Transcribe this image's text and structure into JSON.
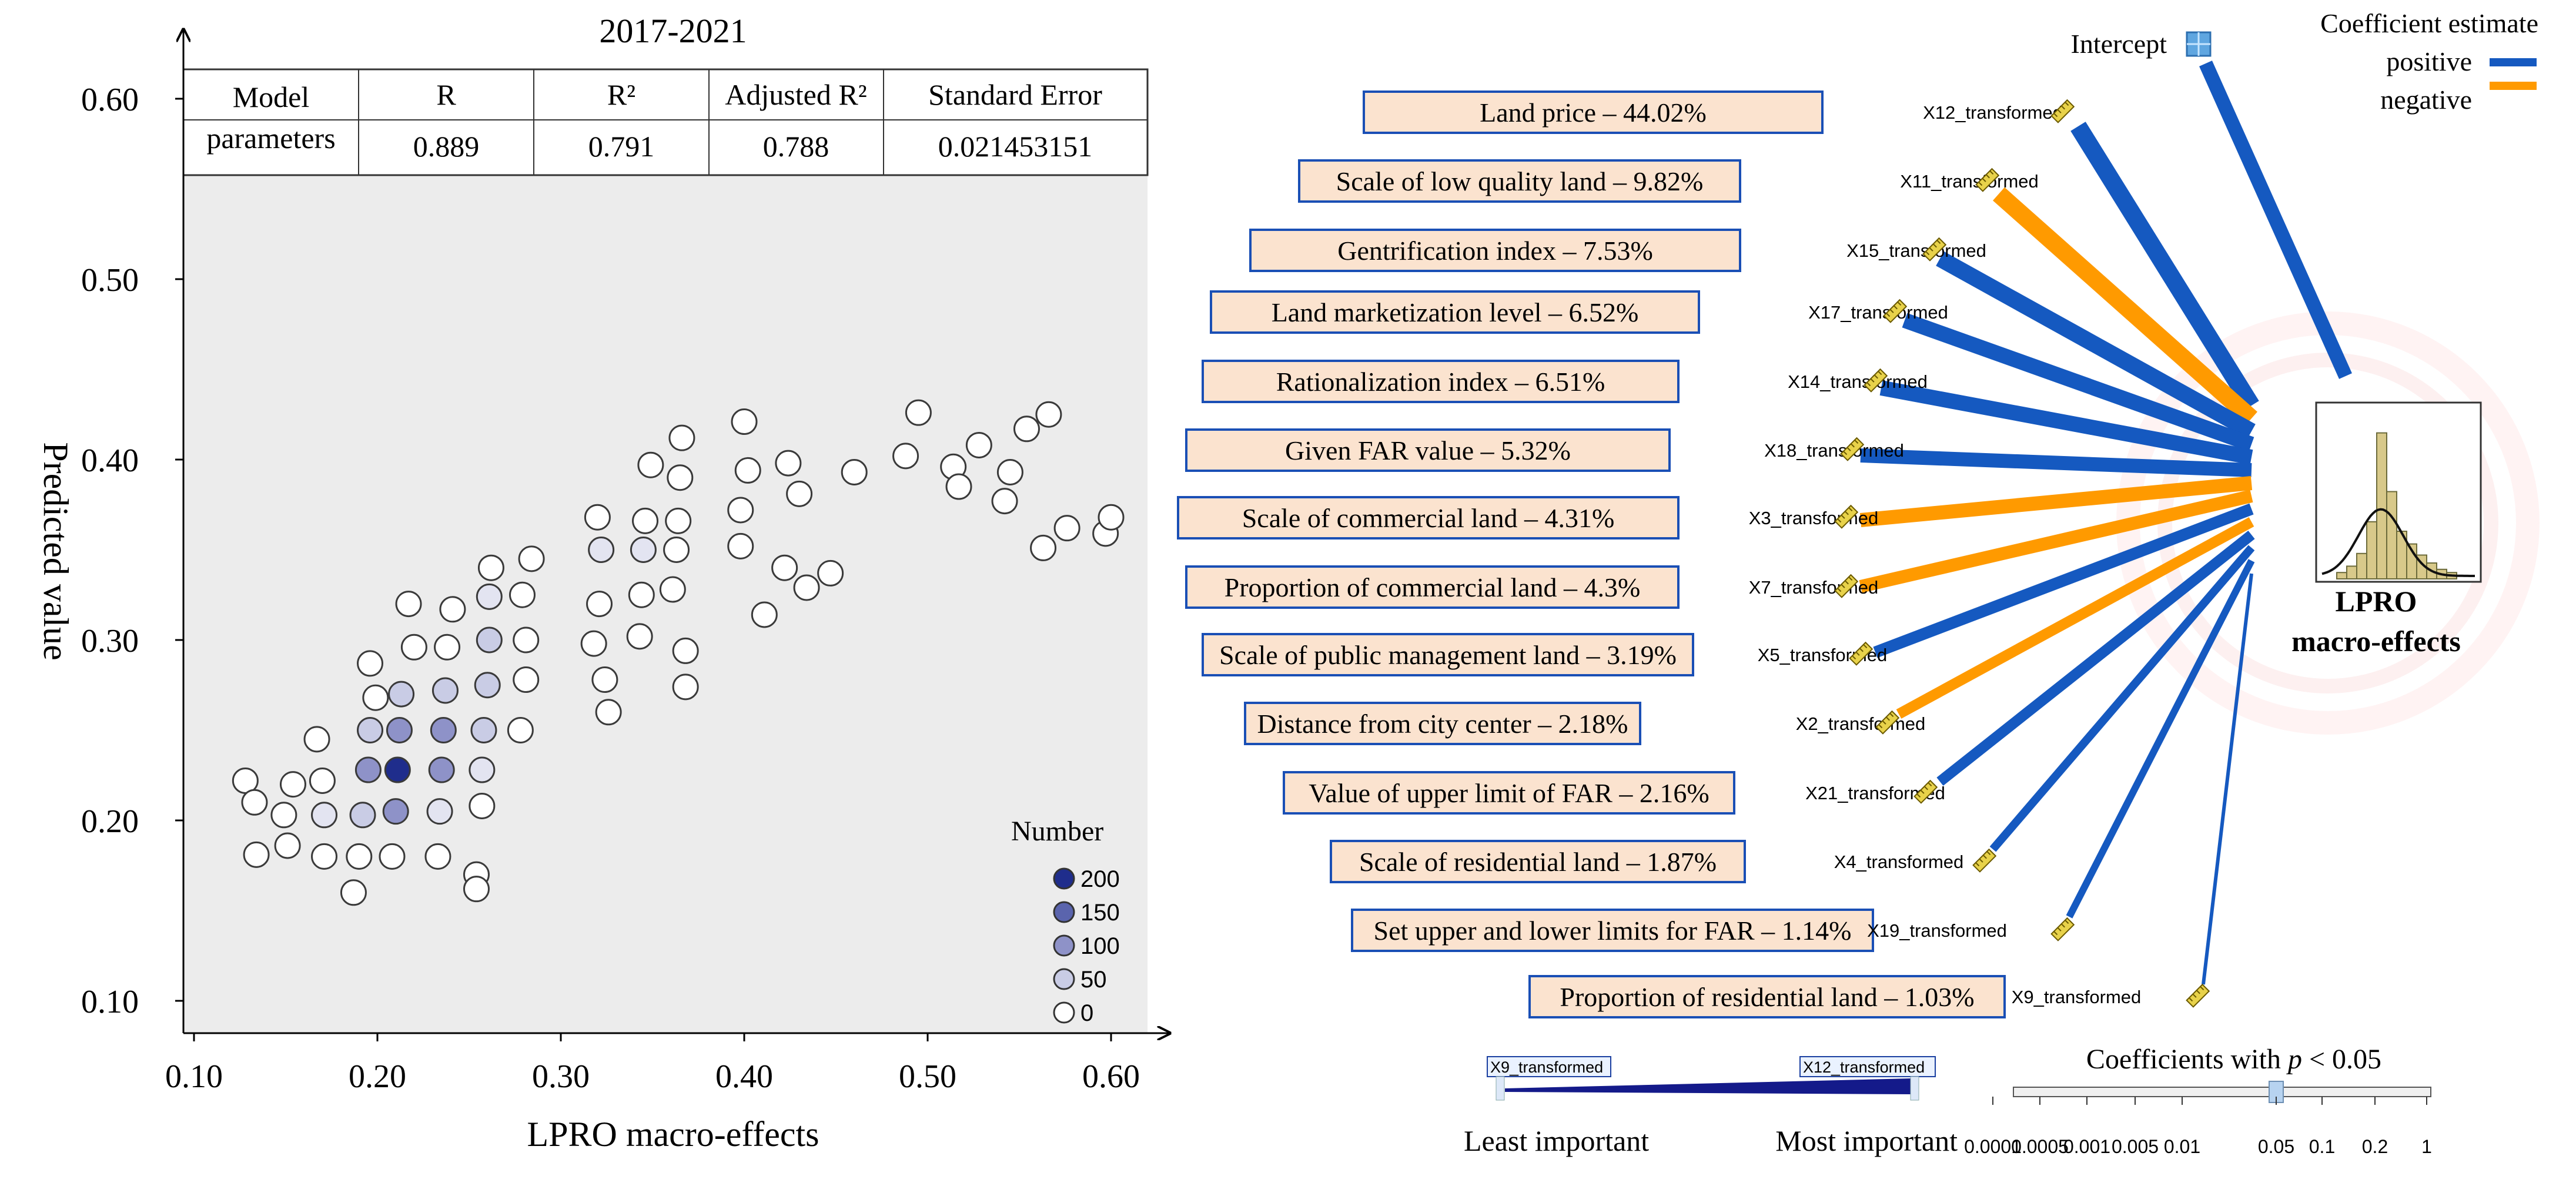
{
  "left_chart": {
    "title": "2017-2021",
    "xlabel": "LPRO macro-effects",
    "ylabel": "Predicted value",
    "legend_title": "Number",
    "table": {
      "headers": [
        "Model parameters",
        "R",
        "R²",
        "Adjusted R²",
        "Standard Error"
      ],
      "header_lines": [
        "Model",
        "parameters"
      ],
      "values": [
        "0.889",
        "0.791",
        "0.788",
        "0.021453151"
      ]
    }
  },
  "right_chart": {
    "intercept_label": "Intercept",
    "legend": {
      "title": "Coefficient estimate",
      "positive": "positive",
      "negative": "negative",
      "positive_color": "#1559c0",
      "negative_color": "#ff9a00"
    },
    "target_label_lines": [
      "LPRO",
      "macro-effects"
    ],
    "importance_bar": {
      "left_tag": "X9_transformed",
      "right_tag": "X12_transformed",
      "least": "Least important",
      "most": "Most important"
    },
    "pvalue_bar": {
      "title": "Coefficients with p < 0.05",
      "title_pre": "Coefficients with ",
      "title_p": "p",
      "title_post": " < 0.05",
      "ticks": [
        "0.0001",
        "0.0005",
        "0.001",
        "0.005",
        "0.01",
        "0.05",
        "0.1",
        "0.2",
        "1"
      ]
    }
  },
  "chart_data": [
    {
      "type": "scatter",
      "title": "2017-2021",
      "xlabel": "LPRO macro-effects",
      "ylabel": "Predicted value",
      "xlim": [
        0.08,
        0.62
      ],
      "ylim": [
        0.09,
        0.64
      ],
      "xticks": [
        "0.10",
        "0.20",
        "0.30",
        "0.40",
        "0.50",
        "0.60"
      ],
      "yticks": [
        "0.10",
        "0.20",
        "0.30",
        "0.40",
        "0.50",
        "0.60"
      ],
      "legend": {
        "title": "Number",
        "levels": [
          200,
          150,
          100,
          50,
          0
        ],
        "labels": [
          "200",
          "150",
          "100",
          "50",
          "0"
        ],
        "colors": [
          "#1f2d8c",
          "#5a64ad",
          "#8e92c8",
          "#c9cce5",
          "#ffffff"
        ]
      },
      "points": [
        {
          "x": 0.128,
          "y": 0.222,
          "n": 0
        },
        {
          "x": 0.133,
          "y": 0.21,
          "n": 0
        },
        {
          "x": 0.134,
          "y": 0.181,
          "n": 0
        },
        {
          "x": 0.149,
          "y": 0.203,
          "n": 0
        },
        {
          "x": 0.151,
          "y": 0.186,
          "n": 0
        },
        {
          "x": 0.154,
          "y": 0.22,
          "n": 0
        },
        {
          "x": 0.167,
          "y": 0.245,
          "n": 0
        },
        {
          "x": 0.17,
          "y": 0.222,
          "n": 0
        },
        {
          "x": 0.171,
          "y": 0.203,
          "n": 20
        },
        {
          "x": 0.171,
          "y": 0.18,
          "n": 0
        },
        {
          "x": 0.187,
          "y": 0.16,
          "n": 0
        },
        {
          "x": 0.19,
          "y": 0.18,
          "n": 0
        },
        {
          "x": 0.192,
          "y": 0.203,
          "n": 50
        },
        {
          "x": 0.195,
          "y": 0.228,
          "n": 100
        },
        {
          "x": 0.196,
          "y": 0.25,
          "n": 50
        },
        {
          "x": 0.196,
          "y": 0.287,
          "n": 0
        },
        {
          "x": 0.199,
          "y": 0.268,
          "n": 0
        },
        {
          "x": 0.208,
          "y": 0.18,
          "n": 0
        },
        {
          "x": 0.21,
          "y": 0.205,
          "n": 100
        },
        {
          "x": 0.211,
          "y": 0.228,
          "n": 200
        },
        {
          "x": 0.212,
          "y": 0.25,
          "n": 100
        },
        {
          "x": 0.213,
          "y": 0.27,
          "n": 50
        },
        {
          "x": 0.217,
          "y": 0.32,
          "n": 0
        },
        {
          "x": 0.22,
          "y": 0.296,
          "n": 0
        },
        {
          "x": 0.233,
          "y": 0.18,
          "n": 0
        },
        {
          "x": 0.234,
          "y": 0.205,
          "n": 20
        },
        {
          "x": 0.235,
          "y": 0.228,
          "n": 100
        },
        {
          "x": 0.236,
          "y": 0.25,
          "n": 100
        },
        {
          "x": 0.237,
          "y": 0.272,
          "n": 50
        },
        {
          "x": 0.238,
          "y": 0.296,
          "n": 0
        },
        {
          "x": 0.241,
          "y": 0.317,
          "n": 0
        },
        {
          "x": 0.254,
          "y": 0.17,
          "n": 0
        },
        {
          "x": 0.254,
          "y": 0.162,
          "n": 0
        },
        {
          "x": 0.257,
          "y": 0.208,
          "n": 0
        },
        {
          "x": 0.257,
          "y": 0.228,
          "n": 20
        },
        {
          "x": 0.258,
          "y": 0.25,
          "n": 80
        },
        {
          "x": 0.26,
          "y": 0.275,
          "n": 50
        },
        {
          "x": 0.261,
          "y": 0.3,
          "n": 50
        },
        {
          "x": 0.261,
          "y": 0.324,
          "n": 20
        },
        {
          "x": 0.262,
          "y": 0.34,
          "n": 0
        },
        {
          "x": 0.278,
          "y": 0.25,
          "n": 0
        },
        {
          "x": 0.281,
          "y": 0.278,
          "n": 0
        },
        {
          "x": 0.281,
          "y": 0.3,
          "n": 0
        },
        {
          "x": 0.279,
          "y": 0.325,
          "n": 0
        },
        {
          "x": 0.284,
          "y": 0.345,
          "n": 0
        },
        {
          "x": 0.318,
          "y": 0.298,
          "n": 0
        },
        {
          "x": 0.321,
          "y": 0.32,
          "n": 0
        },
        {
          "x": 0.322,
          "y": 0.35,
          "n": 20
        },
        {
          "x": 0.32,
          "y": 0.368,
          "n": 0
        },
        {
          "x": 0.324,
          "y": 0.278,
          "n": 0
        },
        {
          "x": 0.326,
          "y": 0.26,
          "n": 0
        },
        {
          "x": 0.343,
          "y": 0.302,
          "n": 0
        },
        {
          "x": 0.344,
          "y": 0.325,
          "n": 0
        },
        {
          "x": 0.345,
          "y": 0.35,
          "n": 20
        },
        {
          "x": 0.346,
          "y": 0.366,
          "n": 0
        },
        {
          "x": 0.349,
          "y": 0.397,
          "n": 0
        },
        {
          "x": 0.361,
          "y": 0.328,
          "n": 0
        },
        {
          "x": 0.363,
          "y": 0.35,
          "n": 0
        },
        {
          "x": 0.364,
          "y": 0.366,
          "n": 0
        },
        {
          "x": 0.365,
          "y": 0.39,
          "n": 0
        },
        {
          "x": 0.366,
          "y": 0.412,
          "n": 0
        },
        {
          "x": 0.368,
          "y": 0.274,
          "n": 0
        },
        {
          "x": 0.368,
          "y": 0.294,
          "n": 0
        },
        {
          "x": 0.398,
          "y": 0.352,
          "n": 0
        },
        {
          "x": 0.398,
          "y": 0.372,
          "n": 0
        },
        {
          "x": 0.4,
          "y": 0.421,
          "n": 0
        },
        {
          "x": 0.402,
          "y": 0.394,
          "n": 0
        },
        {
          "x": 0.411,
          "y": 0.314,
          "n": 0
        },
        {
          "x": 0.422,
          "y": 0.34,
          "n": 0
        },
        {
          "x": 0.424,
          "y": 0.398,
          "n": 0
        },
        {
          "x": 0.43,
          "y": 0.381,
          "n": 0
        },
        {
          "x": 0.434,
          "y": 0.329,
          "n": 0
        },
        {
          "x": 0.447,
          "y": 0.337,
          "n": 0
        },
        {
          "x": 0.46,
          "y": 0.393,
          "n": 0
        },
        {
          "x": 0.488,
          "y": 0.402,
          "n": 0
        },
        {
          "x": 0.495,
          "y": 0.426,
          "n": 0
        },
        {
          "x": 0.514,
          "y": 0.396,
          "n": 0
        },
        {
          "x": 0.517,
          "y": 0.385,
          "n": 0
        },
        {
          "x": 0.528,
          "y": 0.408,
          "n": 0
        },
        {
          "x": 0.542,
          "y": 0.377,
          "n": 0
        },
        {
          "x": 0.545,
          "y": 0.393,
          "n": 0
        },
        {
          "x": 0.554,
          "y": 0.417,
          "n": 0
        },
        {
          "x": 0.563,
          "y": 0.351,
          "n": 0
        },
        {
          "x": 0.566,
          "y": 0.425,
          "n": 0
        },
        {
          "x": 0.576,
          "y": 0.362,
          "n": 0
        },
        {
          "x": 0.597,
          "y": 0.359,
          "n": 0
        },
        {
          "x": 0.6,
          "y": 0.368,
          "n": 0
        }
      ]
    },
    {
      "type": "network",
      "title": "Coefficient estimate",
      "target": "LPRO macro-effects",
      "variables": [
        {
          "code": "X12_transformed",
          "label": "Land price – 44.02%",
          "importance_pct": 44.02,
          "sign": "positive"
        },
        {
          "code": "X11_transformed",
          "label": "Scale of low quality land – 9.82%",
          "importance_pct": 9.82,
          "sign": "negative"
        },
        {
          "code": "X15_transformed",
          "label": "Gentrification index – 7.53%",
          "importance_pct": 7.53,
          "sign": "positive"
        },
        {
          "code": "X17_transformed",
          "label": "Land marketization level – 6.52%",
          "importance_pct": 6.52,
          "sign": "positive"
        },
        {
          "code": "X14_transformed",
          "label": "Rationalization index – 6.51%",
          "importance_pct": 6.51,
          "sign": "positive"
        },
        {
          "code": "X18_transformed",
          "label": "Given FAR value – 5.32%",
          "importance_pct": 5.32,
          "sign": "positive"
        },
        {
          "code": "X3_transformed",
          "label": "Scale of commercial land – 4.31%",
          "importance_pct": 4.31,
          "sign": "negative"
        },
        {
          "code": "X7_transformed",
          "label": "Proportion of commercial land – 4.3%",
          "importance_pct": 4.3,
          "sign": "negative"
        },
        {
          "code": "X5_transformed",
          "label": "Scale of public management land – 3.19%",
          "importance_pct": 3.19,
          "sign": "positive"
        },
        {
          "code": "X2_transformed",
          "label": "Distance from city center – 2.18%",
          "importance_pct": 2.18,
          "sign": "negative"
        },
        {
          "code": "X21_transformed",
          "label": "Value of upper limit of FAR – 2.16%",
          "importance_pct": 2.16,
          "sign": "positive"
        },
        {
          "code": "X4_transformed",
          "label": "Scale of residential land – 1.87%",
          "importance_pct": 1.87,
          "sign": "positive"
        },
        {
          "code": "X19_transformed",
          "label": "Set upper and lower limits for FAR – 1.14%",
          "importance_pct": 1.14,
          "sign": "positive"
        },
        {
          "code": "X9_transformed",
          "label": "Proportion of residential land – 1.03%",
          "importance_pct": 1.03,
          "sign": "positive"
        }
      ]
    }
  ]
}
